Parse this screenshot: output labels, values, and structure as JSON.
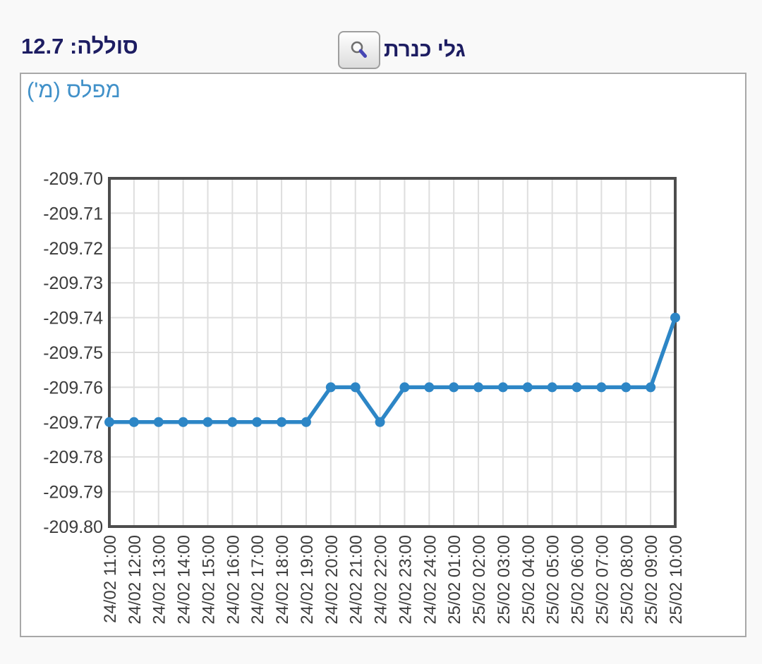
{
  "header": {
    "battery_text": "סוללה: 12.7",
    "station_name": "גלי כנרת",
    "search_icon": "magnifier"
  },
  "panel": {
    "title": "מפלס (מ')"
  },
  "colors": {
    "page_bg": "#f9f9f9",
    "panel_bg": "#ffffff",
    "panel_border": "#a8a8a8",
    "header_text": "#1d1d62",
    "chart_title": "#4191c9"
  },
  "chart_data": {
    "type": "line",
    "title": "מפלס (מ')",
    "ylabel": "מפלס (מ')",
    "xlabel": "",
    "categories": [
      "24/02 11:00",
      "24/02 12:00",
      "24/02 13:00",
      "24/02 14:00",
      "24/02 15:00",
      "24/02 16:00",
      "24/02 17:00",
      "24/02 18:00",
      "24/02 19:00",
      "24/02 20:00",
      "24/02 21:00",
      "24/02 22:00",
      "24/02 23:00",
      "24/02 24:00",
      "25/02 01:00",
      "25/02 02:00",
      "25/02 03:00",
      "25/02 04:00",
      "25/02 05:00",
      "25/02 06:00",
      "25/02 07:00",
      "25/02 08:00",
      "25/02 09:00",
      "25/02 10:00"
    ],
    "values": [
      -209.77,
      -209.77,
      -209.77,
      -209.77,
      -209.77,
      -209.77,
      -209.77,
      -209.77,
      -209.77,
      -209.76,
      -209.76,
      -209.77,
      -209.76,
      -209.76,
      -209.76,
      -209.76,
      -209.76,
      -209.76,
      -209.76,
      -209.76,
      -209.76,
      -209.76,
      -209.76,
      -209.74
    ],
    "ylim": [
      -209.8,
      -209.7
    ],
    "ytick_step": 0.01,
    "grid": true,
    "legend": false,
    "marker": "circle",
    "colors": {
      "line": "#2d86c6",
      "grid": "#dedede",
      "axis_border": "#4d4d4d",
      "tick_text": "#3c3c3c"
    }
  }
}
